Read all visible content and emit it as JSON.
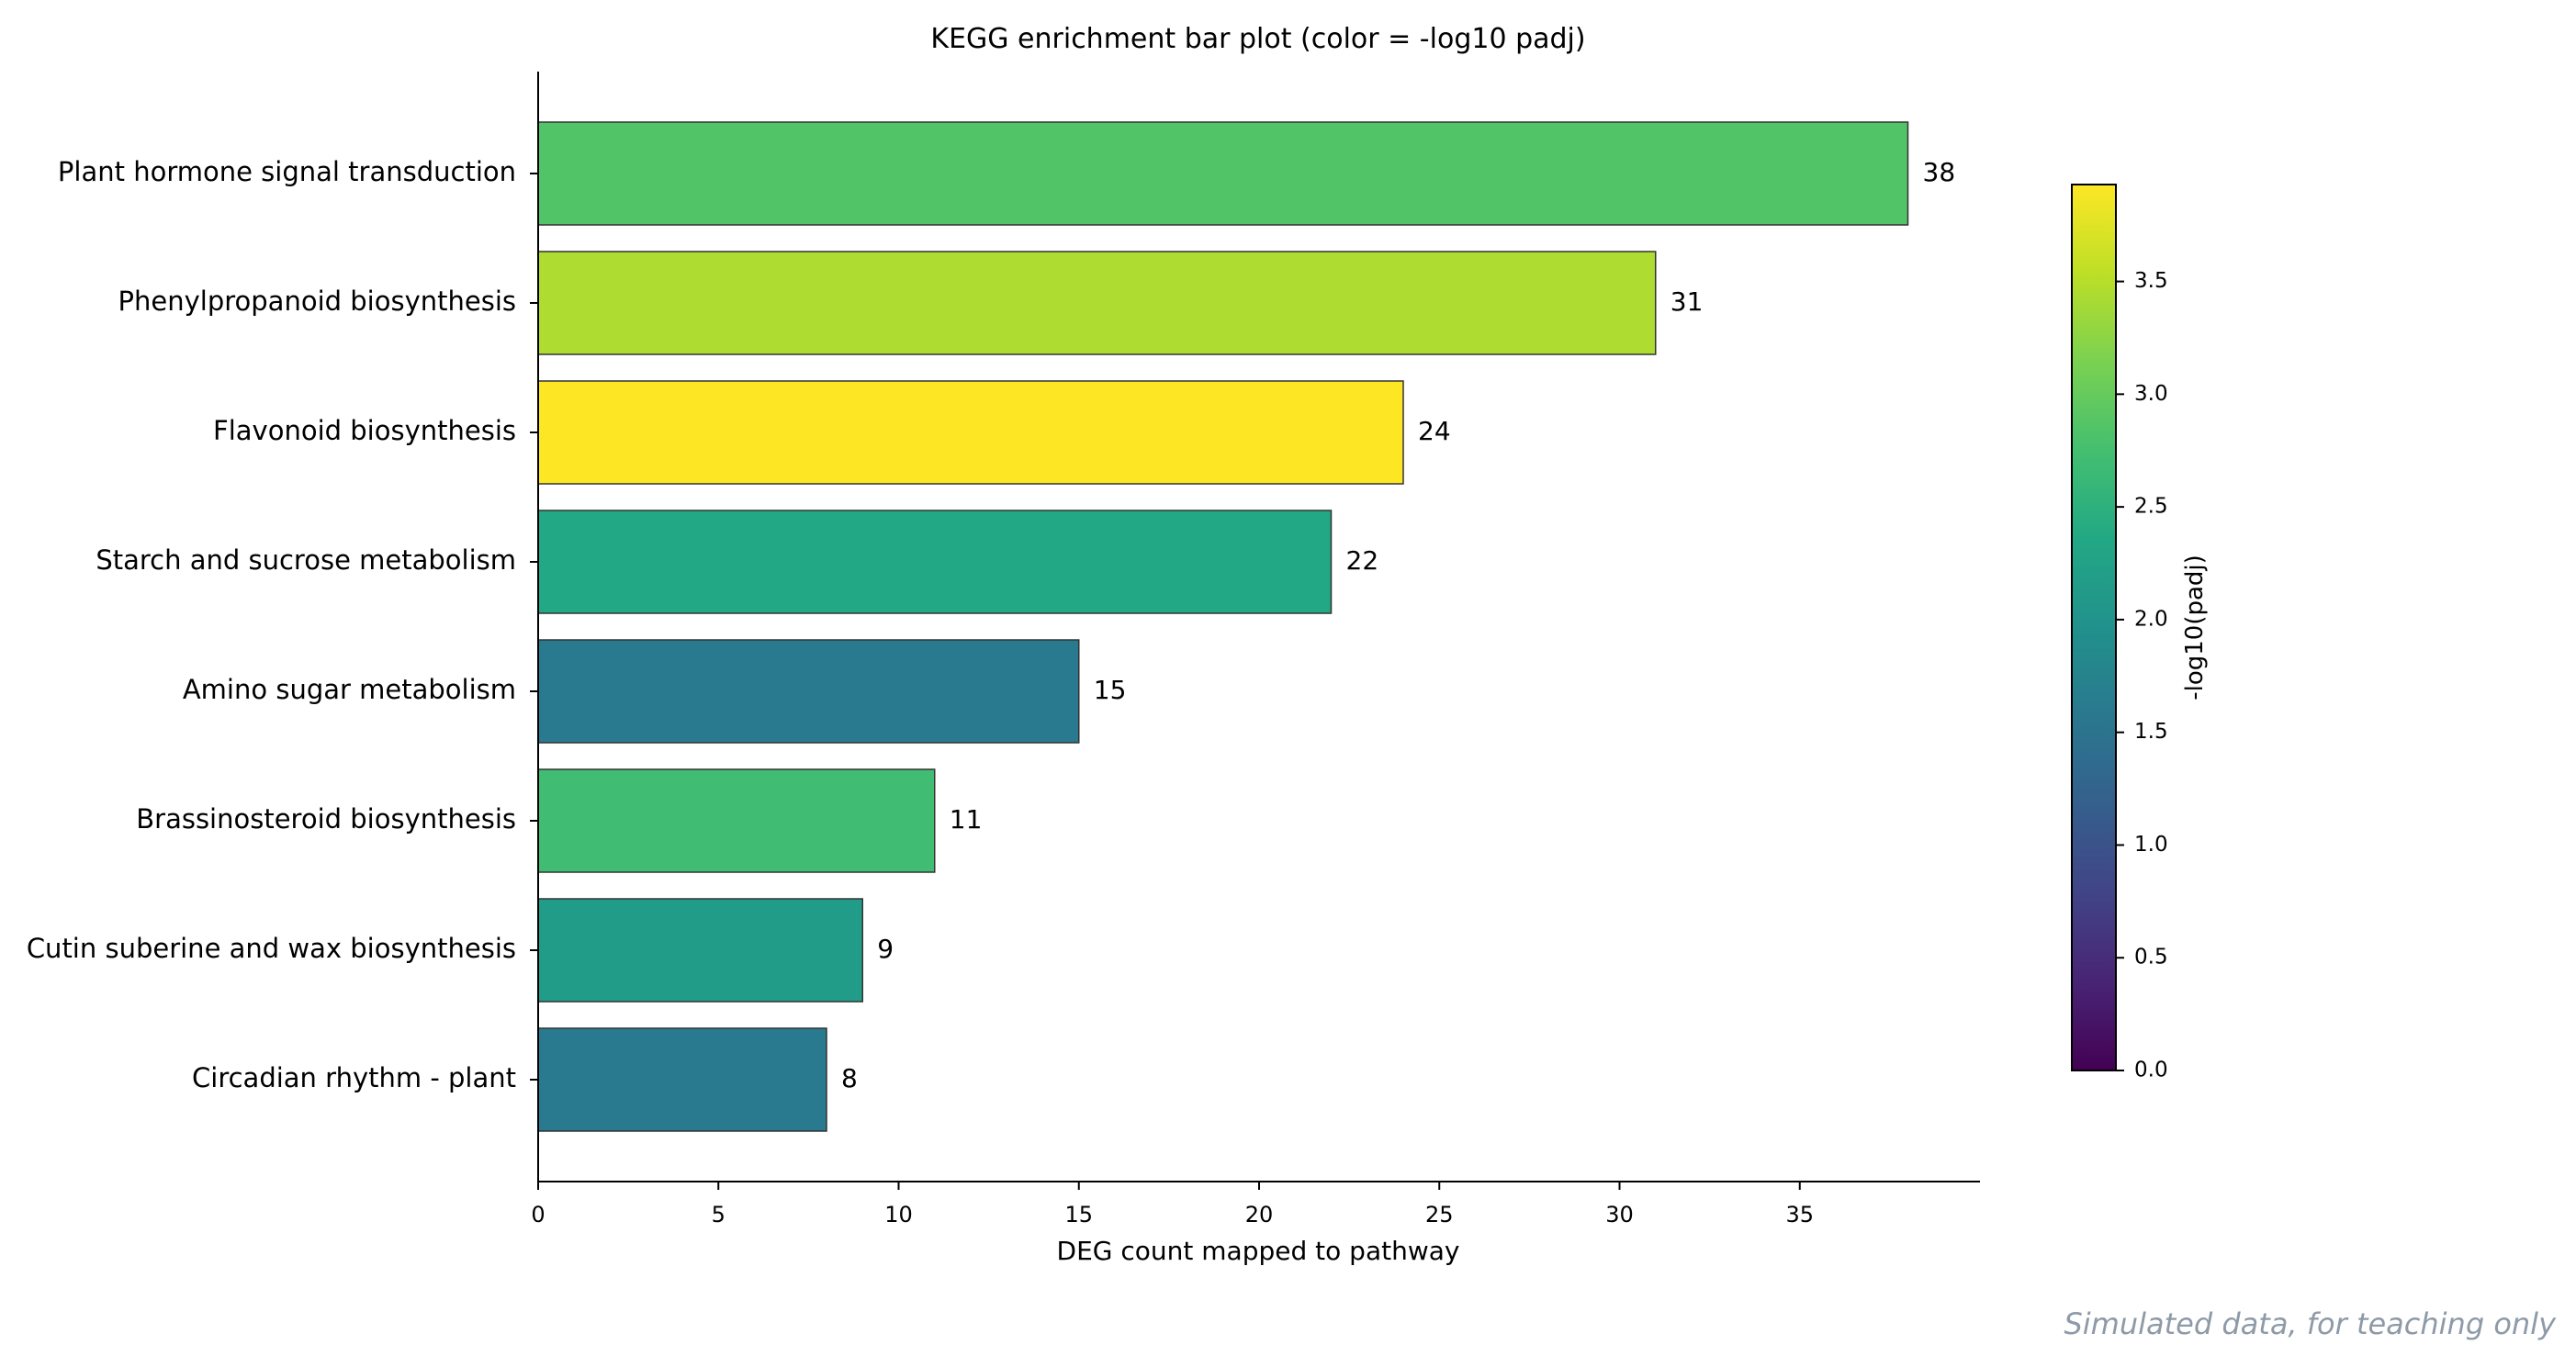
{
  "chart_data": {
    "type": "bar",
    "orientation": "horizontal",
    "title": "KEGG enrichment bar plot (color = -log10 padj)",
    "xlabel": "DEG count mapped to pathway",
    "ylabel": "",
    "xlim": [
      0,
      40
    ],
    "xticks": [
      0,
      5,
      10,
      15,
      20,
      25,
      30,
      35
    ],
    "grid": false,
    "categories": [
      "Plant hormone signal transduction",
      "Phenylpropanoid biosynthesis",
      "Flavonoid biosynthesis",
      "Starch and sucrose metabolism",
      "Amino sugar metabolism",
      "Brassinosteroid biosynthesis",
      "Cutin suberine and wax biosynthesis",
      "Circadian rhythm - plant"
    ],
    "values": [
      38,
      31,
      24,
      22,
      15,
      11,
      9,
      8
    ],
    "data_labels": [
      "38",
      "31",
      "24",
      "22",
      "15",
      "11",
      "9",
      "8"
    ],
    "neg_log10_padj": [
      2.85,
      3.45,
      3.93,
      2.35,
      1.6,
      2.7,
      2.15,
      1.6
    ],
    "colorbar": {
      "label": "-log10(padj)",
      "range": [
        0,
        3.93
      ],
      "colormap": "viridis",
      "ticks": [
        0.0,
        0.5,
        1.0,
        1.5,
        2.0,
        2.5,
        3.0,
        3.5
      ],
      "tick_labels": [
        "0.0",
        "0.5",
        "1.0",
        "1.5",
        "2.0",
        "2.5",
        "3.0",
        "3.5"
      ]
    }
  },
  "footer_note": "Simulated data, for teaching only"
}
